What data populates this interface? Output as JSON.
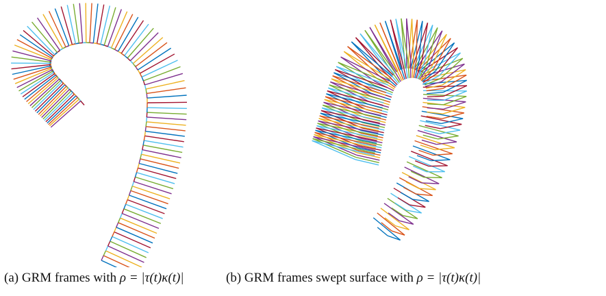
{
  "figures": [
    {
      "label": "(a)",
      "caption": "GRM frames with",
      "math": "ρ = |τ(t)κ(t)|"
    },
    {
      "label": "(b)",
      "caption": "GRM frames swept surface with",
      "math": "ρ = |τ(t)κ(t)|"
    }
  ]
}
